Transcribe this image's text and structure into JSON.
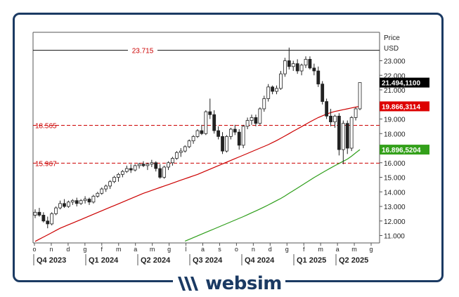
{
  "brand": {
    "name": "websim"
  },
  "chart_data": {
    "type": "candlestick",
    "ylabel": "Price",
    "currency": "USD",
    "ylim": [
      10.5,
      25.0
    ],
    "yticks": [
      11000,
      12000,
      13000,
      14000,
      15000,
      16000,
      17000,
      18000,
      19000,
      20000,
      21000,
      22000,
      23000
    ],
    "ytick_labels": [
      "11.000",
      "12.000",
      "13.000",
      "14.000",
      "15.000",
      "16.000",
      "17.000",
      "18.000",
      "19.000",
      "20.000",
      "21.000",
      "22.000",
      "23.000"
    ],
    "month_ticks": [
      "o",
      "n",
      "d",
      "g",
      "f",
      "m",
      "a",
      "m",
      "g",
      "l",
      "a",
      "s",
      "o",
      "n",
      "d",
      "g",
      "f",
      "m",
      "a",
      "m",
      "g"
    ],
    "quarters": [
      "Q4 2023",
      "Q1 2024",
      "Q2 2024",
      "Q3 2024",
      "Q4 2024",
      "Q1 2025",
      "Q2 2025"
    ],
    "levels": [
      {
        "value": 23.715,
        "label": "23.715",
        "style": "solid-black"
      },
      {
        "value": 18.565,
        "label": "18.565",
        "style": "dashed-red"
      },
      {
        "value": 15.967,
        "label": "15.967",
        "style": "dashed-red"
      }
    ],
    "series": [
      {
        "name": "Weekly candles",
        "ohlc": [
          [
            12.4,
            12.8,
            12.2,
            12.6
          ],
          [
            12.6,
            12.9,
            12.3,
            12.4
          ],
          [
            12.4,
            12.6,
            11.9,
            12.0
          ],
          [
            12.0,
            12.3,
            11.5,
            11.8
          ],
          [
            11.8,
            12.6,
            11.7,
            12.5
          ],
          [
            12.5,
            13.0,
            12.4,
            12.9
          ],
          [
            12.9,
            13.4,
            12.8,
            13.2
          ],
          [
            13.2,
            13.5,
            12.9,
            13.0
          ],
          [
            13.0,
            13.4,
            12.9,
            13.3
          ],
          [
            13.3,
            13.5,
            13.1,
            13.4
          ],
          [
            13.4,
            13.6,
            13.0,
            13.2
          ],
          [
            13.2,
            13.5,
            13.1,
            13.4
          ],
          [
            13.4,
            13.7,
            13.2,
            13.5
          ],
          [
            13.5,
            13.6,
            13.1,
            13.3
          ],
          [
            13.3,
            13.8,
            13.2,
            13.7
          ],
          [
            13.7,
            14.0,
            13.6,
            13.9
          ],
          [
            13.9,
            14.3,
            13.8,
            14.2
          ],
          [
            14.2,
            14.5,
            14.0,
            14.4
          ],
          [
            14.4,
            14.8,
            14.2,
            14.7
          ],
          [
            14.7,
            15.1,
            14.6,
            15.0
          ],
          [
            15.0,
            15.3,
            14.7,
            15.2
          ],
          [
            15.2,
            15.5,
            15.0,
            15.4
          ],
          [
            15.4,
            15.8,
            15.3,
            15.6
          ],
          [
            15.6,
            15.9,
            15.3,
            15.5
          ],
          [
            15.5,
            15.9,
            15.4,
            15.8
          ],
          [
            15.8,
            16.0,
            15.6,
            15.9
          ],
          [
            15.9,
            16.1,
            15.7,
            15.8
          ],
          [
            15.8,
            16.0,
            15.5,
            15.9
          ],
          [
            15.9,
            16.2,
            15.7,
            16.0
          ],
          [
            16.0,
            16.1,
            15.4,
            15.6
          ],
          [
            15.6,
            15.9,
            14.9,
            15.0
          ],
          [
            15.0,
            15.8,
            14.9,
            15.7
          ],
          [
            15.7,
            16.1,
            15.5,
            16.0
          ],
          [
            16.0,
            16.4,
            15.8,
            16.3
          ],
          [
            16.3,
            16.8,
            16.2,
            16.7
          ],
          [
            16.7,
            17.0,
            16.4,
            16.8
          ],
          [
            16.8,
            17.2,
            16.7,
            17.1
          ],
          [
            17.1,
            17.6,
            17.0,
            17.5
          ],
          [
            17.5,
            17.9,
            17.3,
            17.8
          ],
          [
            17.8,
            18.3,
            17.7,
            18.2
          ],
          [
            18.2,
            18.6,
            17.9,
            18.0
          ],
          [
            18.0,
            19.6,
            17.9,
            19.5
          ],
          [
            19.5,
            20.4,
            19.0,
            19.3
          ],
          [
            19.3,
            19.6,
            18.0,
            18.2
          ],
          [
            18.2,
            18.5,
            17.6,
            17.8
          ],
          [
            17.8,
            18.1,
            16.6,
            16.8
          ],
          [
            16.8,
            17.9,
            16.7,
            17.8
          ],
          [
            17.8,
            18.4,
            17.6,
            18.3
          ],
          [
            18.3,
            18.6,
            17.9,
            18.1
          ],
          [
            18.1,
            18.3,
            16.9,
            17.2
          ],
          [
            17.2,
            18.6,
            17.0,
            18.5
          ],
          [
            18.5,
            19.1,
            18.3,
            18.9
          ],
          [
            18.9,
            19.3,
            18.6,
            19.1
          ],
          [
            19.1,
            19.3,
            18.5,
            18.7
          ],
          [
            18.7,
            19.8,
            18.6,
            19.7
          ],
          [
            19.7,
            20.6,
            19.5,
            20.4
          ],
          [
            20.4,
            21.4,
            20.2,
            21.2
          ],
          [
            21.2,
            21.3,
            20.7,
            20.9
          ],
          [
            20.9,
            21.3,
            20.7,
            21.1
          ],
          [
            21.1,
            22.3,
            21.0,
            22.1
          ],
          [
            22.1,
            23.2,
            21.9,
            23.0
          ],
          [
            23.0,
            23.9,
            22.4,
            22.6
          ],
          [
            22.6,
            23.0,
            22.3,
            22.8
          ],
          [
            22.8,
            23.1,
            22.1,
            22.3
          ],
          [
            22.3,
            22.8,
            22.0,
            22.7
          ],
          [
            22.7,
            23.3,
            22.5,
            23.1
          ],
          [
            23.1,
            23.3,
            22.4,
            22.5
          ],
          [
            22.5,
            22.8,
            22.0,
            22.3
          ],
          [
            22.3,
            22.6,
            21.2,
            21.4
          ],
          [
            21.4,
            21.6,
            20.0,
            20.2
          ],
          [
            20.2,
            20.4,
            19.0,
            19.2
          ],
          [
            19.2,
            19.7,
            18.5,
            18.8
          ],
          [
            18.8,
            19.3,
            18.4,
            19.2
          ],
          [
            19.2,
            19.4,
            16.5,
            16.9
          ],
          [
            16.9,
            18.9,
            15.9,
            18.7
          ],
          [
            18.7,
            18.9,
            16.6,
            17.0
          ],
          [
            17.0,
            19.2,
            16.8,
            19.1
          ],
          [
            19.1,
            19.8,
            18.9,
            19.7
          ],
          [
            19.7,
            21.5,
            19.6,
            21.5
          ]
        ]
      },
      {
        "name": "Moving average (red)",
        "last": "19.866,3114",
        "color": "#cc0000",
        "y": [
          10.6,
          10.75,
          10.9,
          11.05,
          11.2,
          11.35,
          11.5,
          11.62,
          11.74,
          11.86,
          11.98,
          12.1,
          12.22,
          12.34,
          12.46,
          12.58,
          12.7,
          12.82,
          12.94,
          13.06,
          13.18,
          13.3,
          13.42,
          13.54,
          13.66,
          13.78,
          13.9,
          14.0,
          14.1,
          14.2,
          14.3,
          14.4,
          14.5,
          14.6,
          14.7,
          14.8,
          14.9,
          15.0,
          15.1,
          15.2,
          15.32,
          15.44,
          15.56,
          15.68,
          15.8,
          15.92,
          16.04,
          16.16,
          16.28,
          16.4,
          16.52,
          16.64,
          16.76,
          16.88,
          17.0,
          17.12,
          17.24,
          17.38,
          17.52,
          17.68,
          17.84,
          18.0,
          18.16,
          18.32,
          18.48,
          18.64,
          18.8,
          18.95,
          19.1,
          19.22,
          19.34,
          19.44,
          19.52,
          19.58,
          19.64,
          19.7,
          19.76,
          19.82,
          19.87
        ]
      },
      {
        "name": "Moving average (green)",
        "last": "16.896,5204",
        "color": "#2e9e1a",
        "y": [
          null,
          null,
          null,
          null,
          null,
          null,
          null,
          null,
          null,
          null,
          null,
          null,
          null,
          null,
          null,
          null,
          null,
          null,
          null,
          null,
          null,
          null,
          null,
          null,
          null,
          null,
          null,
          null,
          null,
          null,
          null,
          null,
          null,
          null,
          null,
          null,
          10.62,
          10.74,
          10.86,
          10.98,
          11.1,
          11.22,
          11.34,
          11.46,
          11.58,
          11.7,
          11.82,
          11.94,
          12.06,
          12.18,
          12.3,
          12.43,
          12.56,
          12.69,
          12.82,
          12.96,
          13.1,
          13.25,
          13.4,
          13.55,
          13.72,
          13.9,
          14.08,
          14.26,
          14.44,
          14.62,
          14.8,
          14.98,
          15.15,
          15.32,
          15.48,
          15.64,
          15.8,
          15.95,
          16.1,
          16.25,
          16.45,
          16.68,
          16.9
        ]
      }
    ],
    "last_price": "21.494,1100"
  }
}
